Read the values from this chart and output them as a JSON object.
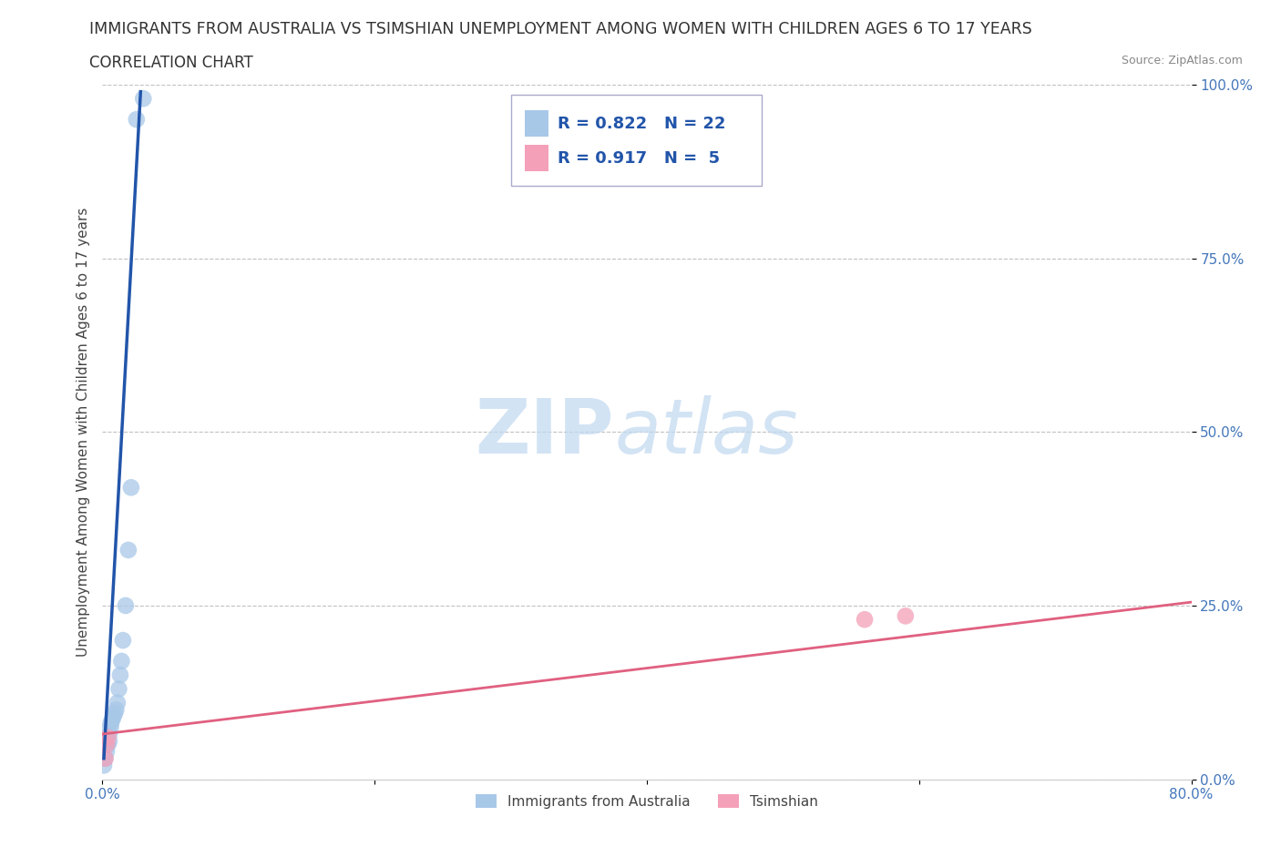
{
  "title": "IMMIGRANTS FROM AUSTRALIA VS TSIMSHIAN UNEMPLOYMENT AMONG WOMEN WITH CHILDREN AGES 6 TO 17 YEARS",
  "subtitle": "CORRELATION CHART",
  "source": "Source: ZipAtlas.com",
  "ylabel": "Unemployment Among Women with Children Ages 6 to 17 years",
  "watermark_zip": "ZIP",
  "watermark_atlas": "atlas",
  "xlim": [
    0.0,
    0.8
  ],
  "ylim": [
    0.0,
    1.0
  ],
  "xticks": [
    0.0,
    0.2,
    0.4,
    0.6,
    0.8
  ],
  "yticks": [
    0.0,
    0.25,
    0.5,
    0.75,
    1.0
  ],
  "xticklabels": [
    "0.0%",
    "",
    "",
    "",
    "80.0%"
  ],
  "yticklabels": [
    "0.0%",
    "25.0%",
    "50.0%",
    "75.0%",
    "100.0%"
  ],
  "australia_color": "#a8c8e8",
  "australia_line_color": "#2255aa",
  "tsimshian_color": "#f4a0b8",
  "tsimshian_line_color": "#e06080",
  "australia_R": 0.822,
  "australia_N": 22,
  "tsimshian_R": 0.917,
  "tsimshian_N": 5,
  "australia_scatter_x": [
    0.001,
    0.002,
    0.003,
    0.004,
    0.005,
    0.005,
    0.006,
    0.006,
    0.007,
    0.008,
    0.009,
    0.01,
    0.011,
    0.012,
    0.013,
    0.014,
    0.015,
    0.017,
    0.019,
    0.021,
    0.025,
    0.03
  ],
  "australia_scatter_y": [
    0.02,
    0.03,
    0.04,
    0.05,
    0.055,
    0.065,
    0.075,
    0.08,
    0.085,
    0.09,
    0.095,
    0.1,
    0.11,
    0.13,
    0.15,
    0.17,
    0.2,
    0.25,
    0.33,
    0.42,
    0.95,
    0.98
  ],
  "tsimshian_scatter_x": [
    0.002,
    0.003,
    0.004,
    0.56,
    0.59
  ],
  "tsimshian_scatter_y": [
    0.03,
    0.05,
    0.06,
    0.23,
    0.235
  ],
  "australia_trend_x": [
    0.001,
    0.028
  ],
  "australia_trend_y": [
    0.03,
    0.99
  ],
  "tsimshian_trend_x": [
    0.0,
    0.8
  ],
  "tsimshian_trend_y": [
    0.065,
    0.255
  ],
  "background_color": "#ffffff",
  "grid_color": "#bbbbbb",
  "title_fontsize": 12.5,
  "subtitle_fontsize": 12,
  "axis_label_fontsize": 11,
  "tick_fontsize": 11,
  "legend_R_color": "#2255aa",
  "legend_label_color": "#333333"
}
